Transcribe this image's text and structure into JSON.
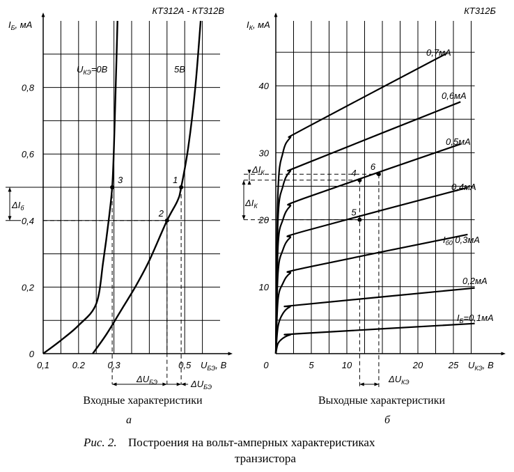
{
  "figure": {
    "caption_prefix": "Рис. 2.",
    "caption_line1": "Построения на вольт-амперных характеристиках",
    "caption_line2": "транзистора"
  },
  "chart_data": [
    {
      "id": "input",
      "type": "line",
      "title": "КТ312А - КТ312В",
      "ylabel": "I_Б, мА",
      "xlabel": "U_БЭ, В",
      "xlim": [
        0.1,
        0.6
      ],
      "ylim": [
        0,
        1.0
      ],
      "x_ticks": [
        "0,1",
        "0.2",
        "0,3",
        "0,5"
      ],
      "x_tick_values": [
        0.1,
        0.2,
        0.3,
        0.5
      ],
      "y_ticks": [
        "0",
        "0,2",
        "0,4",
        "0,6",
        "0,8"
      ],
      "y_tick_values": [
        0,
        0.2,
        0.4,
        0.6,
        0.8
      ],
      "series": [
        {
          "name": "U_КЭ=0В",
          "x": [
            0.1,
            0.15,
            0.2,
            0.25,
            0.27,
            0.285,
            0.295,
            0.3,
            0.305,
            0.31
          ],
          "y": [
            0,
            0.04,
            0.085,
            0.15,
            0.28,
            0.4,
            0.5,
            0.62,
            0.8,
            1.0
          ]
        },
        {
          "name": "5В",
          "x": [
            0.24,
            0.28,
            0.32,
            0.36,
            0.4,
            0.45,
            0.48,
            0.49,
            0.51,
            0.53,
            0.545
          ],
          "y": [
            0,
            0.06,
            0.13,
            0.2,
            0.28,
            0.4,
            0.46,
            0.5,
            0.62,
            0.8,
            1.0
          ]
        }
      ],
      "points": [
        {
          "label": "3",
          "x": 0.295,
          "y": 0.5
        },
        {
          "label": "1",
          "x": 0.49,
          "y": 0.5
        },
        {
          "label": "2",
          "x": 0.45,
          "y": 0.4
        }
      ],
      "annotations": {
        "delta_i": "ΔI_б",
        "delta_u1": "ΔU_БЭ",
        "delta_u2": "ΔU_БЭ"
      },
      "subtitle": "Входные характеристики",
      "letter": "а"
    },
    {
      "id": "output",
      "type": "line",
      "title": "КТ312Б",
      "ylabel": "I_К, мА",
      "xlabel": "U_КЭ, В",
      "xlim": [
        0,
        28
      ],
      "ylim": [
        0,
        50
      ],
      "x_ticks": [
        "0",
        "5",
        "10",
        "20",
        "25"
      ],
      "x_tick_values": [
        0,
        5,
        10,
        20,
        25
      ],
      "y_ticks": [
        "10",
        "20",
        "30",
        "40"
      ],
      "y_tick_values": [
        10,
        20,
        30,
        40
      ],
      "series": [
        {
          "name": "I_Б=0,1мА",
          "x": [
            0,
            0.3,
            1,
            2,
            3.5,
            28
          ],
          "y": [
            0,
            1.5,
            2.3,
            2.8,
            3.0,
            4.5
          ]
        },
        {
          "name": "0,2мА",
          "x": [
            0,
            0.3,
            1,
            2,
            3.5,
            28
          ],
          "y": [
            0,
            4.0,
            6.0,
            7.0,
            7.3,
            9.8
          ]
        },
        {
          "name": "I_б0 0,3мА",
          "x": [
            0,
            0.3,
            1,
            2,
            4,
            27
          ],
          "y": [
            0,
            8.0,
            10.5,
            12.0,
            12.8,
            17.8
          ]
        },
        {
          "name": "0,4мА",
          "x": [
            0,
            0.3,
            1,
            2,
            4,
            27
          ],
          "y": [
            0,
            12.0,
            15.5,
            17.3,
            18.3,
            24.8
          ]
        },
        {
          "name": "0,5мА",
          "x": [
            0,
            0.3,
            1,
            2,
            4,
            26
          ],
          "y": [
            0,
            16.0,
            20.0,
            22.0,
            23.2,
            31.3
          ]
        },
        {
          "name": "0,6мА",
          "x": [
            0,
            0.3,
            1,
            2,
            4,
            26
          ],
          "y": [
            0,
            20.0,
            25.0,
            27.2,
            28.3,
            37.6
          ]
        },
        {
          "name": "0,7мА",
          "x": [
            0,
            0.3,
            1,
            2,
            4,
            24
          ],
          "y": [
            0,
            24.0,
            30.0,
            32.2,
            33.6,
            44.8
          ]
        }
      ],
      "points": [
        {
          "label": "4",
          "x": 11.8,
          "y": 25.9
        },
        {
          "label": "6",
          "x": 14.5,
          "y": 26.8
        },
        {
          "label": "5",
          "x": 11.8,
          "y": 20.0
        }
      ],
      "annotations": {
        "delta_ik1": "ΔI_К",
        "delta_ik2": "ΔI_К",
        "delta_uke": "ΔU_КЭ"
      },
      "subtitle": "Выходные характеристики",
      "letter": "б"
    }
  ]
}
